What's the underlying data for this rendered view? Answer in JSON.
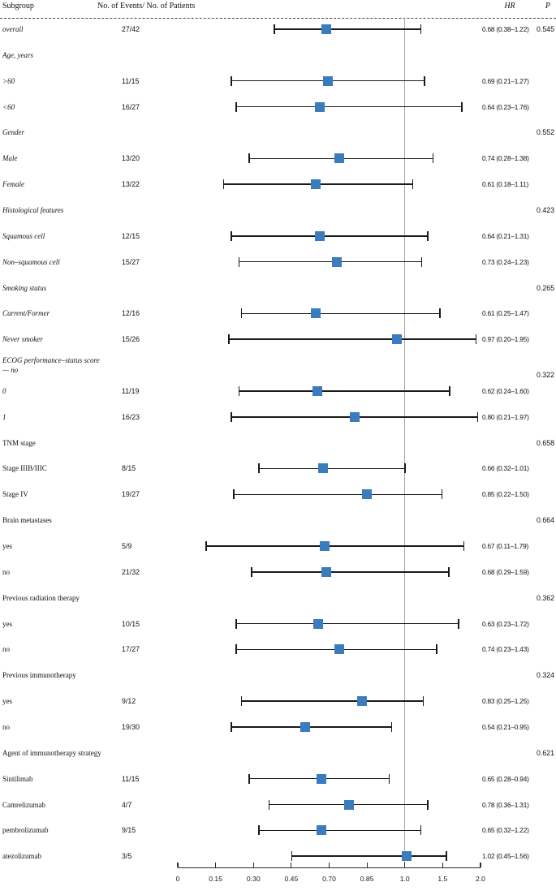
{
  "header": {
    "subgroup": "Subgroup",
    "events": "No. of Events/ No. of Patients",
    "hr": "HR",
    "p": "P"
  },
  "colors": {
    "marker": "#3a7cbe",
    "ci_line": "#1a1a1a",
    "reference_line": "#a6a6a6"
  },
  "chart_data": {
    "type": "forest",
    "title": "",
    "x_tick_labels": [
      "0",
      "0.15",
      "0.30",
      "0.45",
      "0.70",
      "0.85",
      "1.0",
      "1.5",
      "2.0"
    ],
    "x_tick_values": [
      0,
      0.15,
      0.3,
      0.45,
      0.7,
      0.85,
      1.0,
      1.5,
      2.0
    ],
    "reference_value": 1.0,
    "legend": "none",
    "rows": [
      {
        "kind": "item",
        "italic": true,
        "label": "overall",
        "events": "27/42",
        "hr": 0.68,
        "ci_low": 0.38,
        "ci_high": 1.22,
        "hr_text": "0.68 (0.38–1.22)",
        "p": "0.545"
      },
      {
        "kind": "section",
        "italic": true,
        "label": "Age, years"
      },
      {
        "kind": "item",
        "italic": true,
        "label": ">60",
        "events": "11/15",
        "hr": 0.69,
        "ci_low": 0.21,
        "ci_high": 1.27,
        "hr_text": "0.69 (0.21–1.27)"
      },
      {
        "kind": "item",
        "italic": true,
        "label": "<60",
        "events": "16/27",
        "hr": 0.64,
        "ci_low": 0.23,
        "ci_high": 1.76,
        "hr_text": "0.64 (0.23–1.76)"
      },
      {
        "kind": "section",
        "italic": true,
        "label": "Gender",
        "p": "0.552"
      },
      {
        "kind": "item",
        "italic": true,
        "label": "Male",
        "events": "13/20",
        "hr": 0.74,
        "ci_low": 0.28,
        "ci_high": 1.38,
        "hr_text": "0.74 (0.28–1.38)"
      },
      {
        "kind": "item",
        "italic": true,
        "label": "Female",
        "events": "13/22",
        "hr": 0.61,
        "ci_low": 0.18,
        "ci_high": 1.11,
        "hr_text": "0.61 (0.18–1.11)"
      },
      {
        "kind": "section",
        "italic": true,
        "label": "Histological features",
        "p": "0.423"
      },
      {
        "kind": "item",
        "italic": true,
        "label": "Squamous cell",
        "events": "12/15",
        "hr": 0.64,
        "ci_low": 0.21,
        "ci_high": 1.31,
        "hr_text": "0.64 (0.21–1.31)"
      },
      {
        "kind": "item",
        "italic": true,
        "label": "Non–squamous cell",
        "events": "15/27",
        "hr": 0.73,
        "ci_low": 0.24,
        "ci_high": 1.23,
        "hr_text": "0.73 (0.24–1.23)"
      },
      {
        "kind": "section",
        "italic": true,
        "label": "Smoking status",
        "p": "0.265"
      },
      {
        "kind": "item",
        "italic": true,
        "label": "Current/Former",
        "events": "12/16",
        "hr": 0.61,
        "ci_low": 0.25,
        "ci_high": 1.47,
        "hr_text": "0.61 (0.25–1.47)"
      },
      {
        "kind": "item",
        "italic": true,
        "label": "Never smoker",
        "events": "15/26",
        "hr": 0.97,
        "ci_low": 0.2,
        "ci_high": 1.95,
        "hr_text": "0.97 (0.20–1.95)"
      },
      {
        "kind": "section",
        "italic": true,
        "label": "ECOG performance–status score",
        "label2": "— no",
        "p": "0.322"
      },
      {
        "kind": "item",
        "italic": true,
        "label": "0",
        "events": "11/19",
        "hr": 0.62,
        "ci_low": 0.24,
        "ci_high": 1.6,
        "hr_text": "0.62 (0.24–1.60)"
      },
      {
        "kind": "item",
        "italic": true,
        "label": "1",
        "events": "16/23",
        "hr": 0.8,
        "ci_low": 0.21,
        "ci_high": 1.97,
        "hr_text": "0.80 (0.21–1.97)"
      },
      {
        "kind": "section",
        "italic": false,
        "label": "TNM stage",
        "p": "0.658"
      },
      {
        "kind": "item",
        "italic": false,
        "label": "Stage IIIB/IIIC",
        "events": "8/15",
        "hr": 0.66,
        "ci_low": 0.32,
        "ci_high": 1.01,
        "hr_text": "0.66 (0.32–1.01)"
      },
      {
        "kind": "item",
        "italic": false,
        "label": "Stage IV",
        "events": "19/27",
        "hr": 0.85,
        "ci_low": 0.22,
        "ci_high": 1.5,
        "hr_text": "0.85 (0.22–1.50)"
      },
      {
        "kind": "section",
        "italic": false,
        "label": "Brain metastases",
        "p": "0.664"
      },
      {
        "kind": "item",
        "italic": false,
        "label": "yes",
        "events": "5/9",
        "hr": 0.67,
        "ci_low": 0.11,
        "ci_high": 1.79,
        "hr_text": "0.67 (0.11–1.79)"
      },
      {
        "kind": "item",
        "italic": false,
        "label": "no",
        "events": "21/32",
        "hr": 0.68,
        "ci_low": 0.29,
        "ci_high": 1.59,
        "hr_text": "0.68 (0.29–1.59)"
      },
      {
        "kind": "section",
        "italic": false,
        "label": "Previous radiation therapy",
        "p": "0.362"
      },
      {
        "kind": "item",
        "italic": false,
        "label": "yes",
        "events": "10/15",
        "hr": 0.63,
        "ci_low": 0.23,
        "ci_high": 1.72,
        "hr_text": "0.63 (0.23–1.72)"
      },
      {
        "kind": "item",
        "italic": false,
        "label": "no",
        "events": "17/27",
        "hr": 0.74,
        "ci_low": 0.23,
        "ci_high": 1.43,
        "hr_text": "0.74 (0.23–1.43)"
      },
      {
        "kind": "section",
        "italic": false,
        "label": "Previous immunotherapy",
        "p": "0.324"
      },
      {
        "kind": "item",
        "italic": false,
        "label": "yes",
        "events": "9/12",
        "hr": 0.83,
        "ci_low": 0.25,
        "ci_high": 1.25,
        "hr_text": "0.83 (0.25–1.25)"
      },
      {
        "kind": "item",
        "italic": false,
        "label": "no",
        "events": "19/30",
        "hr": 0.54,
        "ci_low": 0.21,
        "ci_high": 0.95,
        "hr_text": "0.54 (0.21–0.95)"
      },
      {
        "kind": "section",
        "italic": false,
        "label": "Agent of immunotherapy strategy",
        "p": "0.621"
      },
      {
        "kind": "item",
        "italic": false,
        "label": "Sintilimab",
        "events": "11/15",
        "hr": 0.65,
        "ci_low": 0.28,
        "ci_high": 0.94,
        "hr_text": "0.65 (0.28–0.94)"
      },
      {
        "kind": "item",
        "italic": false,
        "label": "Camrelizumab",
        "events": "4/7",
        "hr": 0.78,
        "ci_low": 0.36,
        "ci_high": 1.31,
        "hr_text": "0.78 (0.36–1.31)"
      },
      {
        "kind": "item",
        "italic": false,
        "label": "pembrolizumab",
        "events": "9/15",
        "hr": 0.65,
        "ci_low": 0.32,
        "ci_high": 1.22,
        "hr_text": "0.65 (0.32–1.22)"
      },
      {
        "kind": "item",
        "italic": false,
        "label": "atezolizumab",
        "events": "3/5",
        "hr": 1.02,
        "ci_low": 0.45,
        "ci_high": 1.56,
        "hr_text": "1.02 (0.45–1.56)"
      }
    ]
  }
}
